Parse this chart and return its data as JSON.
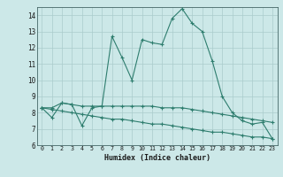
{
  "xlabel": "Humidex (Indice chaleur)",
  "x": [
    0,
    1,
    2,
    3,
    4,
    5,
    6,
    7,
    8,
    9,
    10,
    11,
    12,
    13,
    14,
    15,
    16,
    17,
    18,
    19,
    20,
    21,
    22,
    23
  ],
  "line1": [
    8.3,
    7.7,
    8.6,
    8.5,
    7.2,
    8.3,
    8.4,
    12.7,
    11.4,
    10.0,
    12.5,
    12.3,
    12.2,
    13.8,
    14.4,
    13.5,
    13.0,
    11.2,
    9.0,
    8.0,
    7.5,
    7.3,
    7.4,
    6.4
  ],
  "line2": [
    8.3,
    8.3,
    8.6,
    8.5,
    8.4,
    8.4,
    8.4,
    8.4,
    8.4,
    8.4,
    8.4,
    8.4,
    8.3,
    8.3,
    8.3,
    8.2,
    8.1,
    8.0,
    7.9,
    7.8,
    7.7,
    7.6,
    7.5,
    7.4
  ],
  "line3": [
    8.3,
    8.2,
    8.1,
    8.0,
    7.9,
    7.8,
    7.7,
    7.6,
    7.6,
    7.5,
    7.4,
    7.3,
    7.3,
    7.2,
    7.1,
    7.0,
    6.9,
    6.8,
    6.8,
    6.7,
    6.6,
    6.5,
    6.5,
    6.4
  ],
  "line_color": "#2e7d6e",
  "bg_color": "#cce8e8",
  "grid_color": "#aacccc",
  "ylim": [
    6,
    14.5
  ],
  "yticks": [
    6,
    7,
    8,
    9,
    10,
    11,
    12,
    13,
    14
  ],
  "xlim": [
    -0.5,
    23.5
  ],
  "xticks": [
    0,
    1,
    2,
    3,
    4,
    5,
    6,
    7,
    8,
    9,
    10,
    11,
    12,
    13,
    14,
    15,
    16,
    17,
    18,
    19,
    20,
    21,
    22,
    23
  ]
}
